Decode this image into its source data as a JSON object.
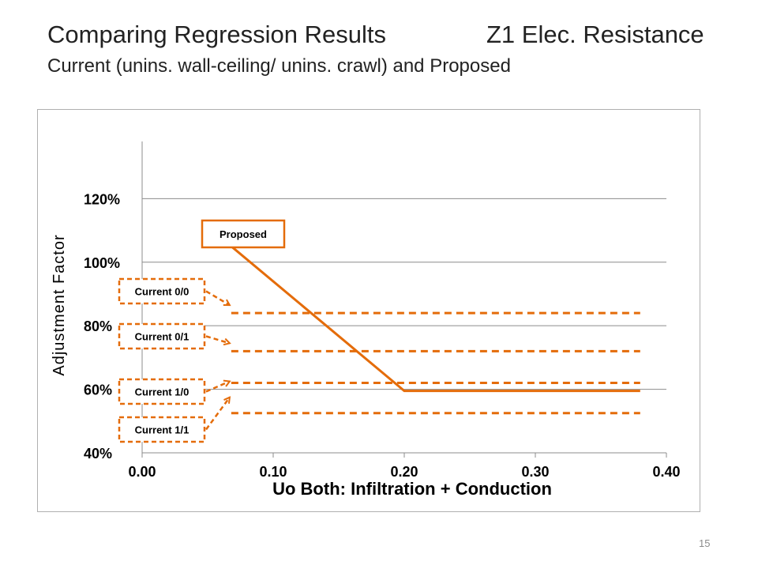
{
  "slide": {
    "title_left": "Comparing Regression Results",
    "title_right": "Z1 Elec. Resistance",
    "subtitle": "Current (unins. wall-ceiling/ unins. crawl) and Proposed",
    "page_number": "15"
  },
  "chart_data": {
    "type": "line",
    "title": "",
    "xlabel": "Uo Both:  Infiltration + Conduction",
    "ylabel": "Adjustment Factor",
    "xlim": [
      0.0,
      0.4
    ],
    "ylim": [
      0.4,
      1.38
    ],
    "x_ticks": [
      0.0,
      0.1,
      0.2,
      0.3,
      0.4
    ],
    "x_tick_labels": [
      "0.00",
      "0.10",
      "0.20",
      "0.30",
      "0.40"
    ],
    "y_ticks": [
      0.4,
      0.6,
      0.8,
      1.0,
      1.2
    ],
    "y_tick_labels": [
      "40%",
      "60%",
      "80%",
      "100%",
      "120%"
    ],
    "grid": true,
    "line_color": "#e46c0a",
    "series": [
      {
        "name": "Proposed",
        "style": "solid",
        "x": [
          0.068,
          0.2,
          0.38
        ],
        "y": [
          1.05,
          0.595,
          0.595
        ]
      },
      {
        "name": "Current 0/0",
        "style": "dashed",
        "x": [
          0.068,
          0.38
        ],
        "y": [
          0.84,
          0.84
        ]
      },
      {
        "name": "Current 0/1",
        "style": "dashed",
        "x": [
          0.068,
          0.38
        ],
        "y": [
          0.72,
          0.72
        ]
      },
      {
        "name": "Current 1/0",
        "style": "dashed",
        "x": [
          0.068,
          0.38
        ],
        "y": [
          0.62,
          0.62
        ]
      },
      {
        "name": "Current 1/1",
        "style": "dashed",
        "x": [
          0.068,
          0.38
        ],
        "y": [
          0.525,
          0.525
        ]
      }
    ],
    "annotations": [
      {
        "text": "Proposed",
        "box": "solid",
        "points_to": "Proposed"
      },
      {
        "text": "Current 0/0",
        "box": "dashed",
        "points_to": "Current 0/0"
      },
      {
        "text": "Current 0/1",
        "box": "dashed",
        "points_to": "Current 0/1"
      },
      {
        "text": "Current 1/0",
        "box": "dashed",
        "points_to": "Current 1/0"
      },
      {
        "text": "Current 1/1",
        "box": "dashed",
        "points_to": "Current 1/1"
      }
    ]
  }
}
